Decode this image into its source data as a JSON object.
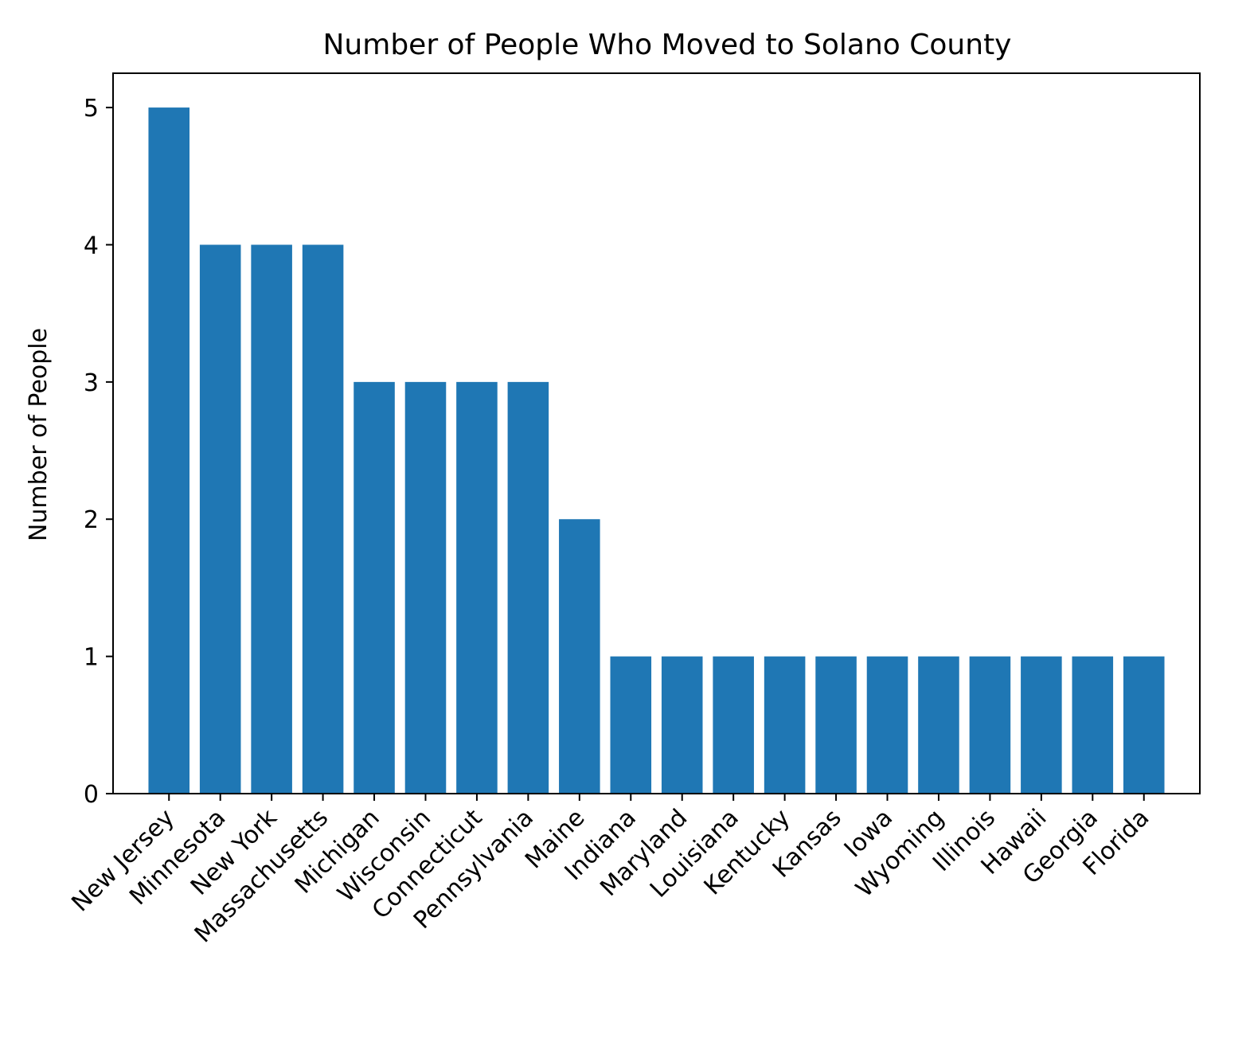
{
  "chart_data": {
    "type": "bar",
    "title": "Number of People Who Moved to Solano County",
    "xlabel": "",
    "ylabel": "Number of People",
    "categories": [
      "New Jersey",
      "Minnesota",
      "New York",
      "Massachusetts",
      "Michigan",
      "Wisconsin",
      "Connecticut",
      "Pennsylvania",
      "Maine",
      "Indiana",
      "Maryland",
      "Louisiana",
      "Kentucky",
      "Kansas",
      "Iowa",
      "Wyoming",
      "Illinois",
      "Hawaii",
      "Georgia",
      "Florida"
    ],
    "values": [
      5,
      4,
      4,
      4,
      3,
      3,
      3,
      3,
      2,
      1,
      1,
      1,
      1,
      1,
      1,
      1,
      1,
      1,
      1,
      1
    ],
    "ylim": [
      0,
      5.25
    ],
    "yticks": [
      0,
      1,
      2,
      3,
      4,
      5
    ],
    "grid": false,
    "legend": "none",
    "colors": {
      "bar": "#1f77b4",
      "axis": "#000000"
    }
  }
}
